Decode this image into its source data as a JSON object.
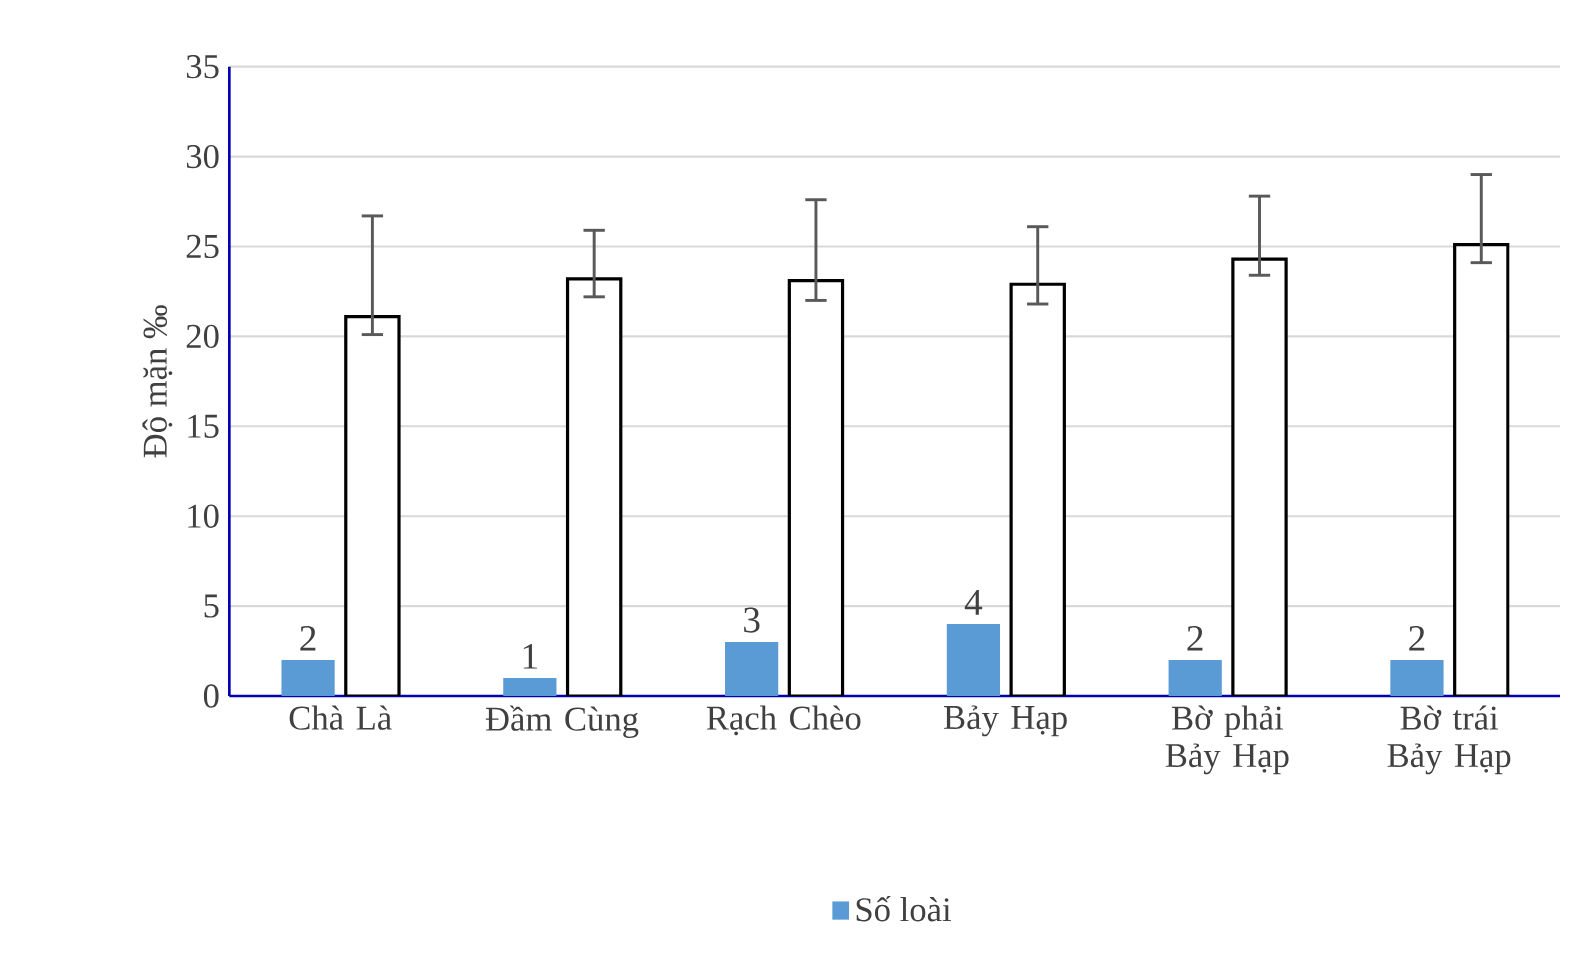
{
  "chart_data": {
    "type": "bar",
    "ylabel": "Độ mặn ‰",
    "categories": [
      "Chà Là",
      "Đầm Cùng",
      "Rạch Chèo",
      "Bảy Hạp",
      "Bờ phải Bảy Hạp",
      "Bờ trái Bảy Hạp"
    ],
    "series": [
      {
        "name": "Số loài",
        "color": "#5b9bd5",
        "values": [
          2,
          1,
          3,
          4,
          2,
          2
        ],
        "value_labels": [
          "2",
          "1",
          "3",
          "4",
          "2",
          "2"
        ]
      },
      {
        "color": "#ffffff",
        "values": [
          21.1,
          23.2,
          23.1,
          22.9,
          24.3,
          25.1
        ],
        "errors": [
          [
            20.1,
            26.7
          ],
          [
            22.2,
            25.9
          ],
          [
            22.0,
            27.6
          ],
          [
            21.8,
            26.1
          ],
          [
            23.4,
            27.8
          ],
          [
            24.1,
            29.0
          ]
        ]
      }
    ],
    "ylim": [
      0,
      35
    ],
    "yticks": [
      0,
      5,
      10,
      15,
      20,
      25,
      30,
      35
    ],
    "grid": "y",
    "legend": "bottom"
  }
}
